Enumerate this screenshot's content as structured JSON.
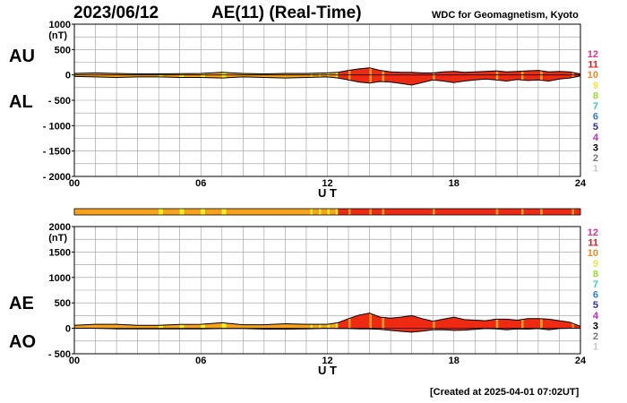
{
  "header": {
    "date": "2023/06/12",
    "title": "AE(11) (Real-Time)",
    "source": "WDC for Geomagnetism, Kyoto"
  },
  "footer": {
    "created": "[Created at 2025-04-01 07:02UT]"
  },
  "legend": {
    "levels": [
      {
        "label": "12",
        "color": "#e0338f"
      },
      {
        "label": "11",
        "color": "#e81b1b"
      },
      {
        "label": "10",
        "color": "#f08a1c"
      },
      {
        "label": "9",
        "color": "#f6e33a"
      },
      {
        "label": "8",
        "color": "#9bdc27"
      },
      {
        "label": "7",
        "color": "#33c9cc"
      },
      {
        "label": "6",
        "color": "#2f7be0"
      },
      {
        "label": "5",
        "color": "#2e2ab8"
      },
      {
        "label": "4",
        "color": "#c51fd1"
      },
      {
        "label": "3",
        "color": "#000000"
      },
      {
        "label": "2",
        "color": "#777777"
      },
      {
        "label": "1",
        "color": "#c8c8c8"
      }
    ]
  },
  "colors": {
    "orange": "#f7a21b",
    "red": "#ee2a12",
    "yellow": "#f4f21f",
    "grid": "#9a9a9a"
  },
  "chart_data": [
    {
      "type": "area",
      "panel": "top",
      "left_labels": [
        "AU",
        "AL"
      ],
      "ylabel": "(nT)",
      "ylim": [
        -2000,
        1000
      ],
      "y_ticks": [
        "1000",
        "500",
        "0",
        "- 500",
        "- 1000",
        "- 1500",
        "- 2000"
      ],
      "y_tick_values": [
        1000,
        500,
        0,
        -500,
        -1000,
        -1500,
        -2000
      ],
      "x_ticks": [
        "00",
        "06",
        "12",
        "18",
        "24"
      ],
      "x_tick_values": [
        0,
        6,
        12,
        18,
        24
      ],
      "xlabel": "U T",
      "xlim": [
        0,
        24
      ],
      "series": [
        {
          "x": [
            0,
            1,
            2,
            3,
            4,
            5,
            6,
            7,
            8,
            9,
            10,
            11,
            12,
            12.5,
            13,
            13.5,
            14,
            14.5,
            15,
            15.5,
            16,
            16.5,
            17,
            17.5,
            18,
            18.5,
            19,
            19.5,
            20,
            20.5,
            21,
            21.5,
            22,
            22.5,
            23,
            23.5,
            24
          ],
          "y": [
            30,
            40,
            30,
            20,
            20,
            25,
            30,
            50,
            30,
            20,
            30,
            30,
            40,
            50,
            90,
            120,
            140,
            90,
            60,
            50,
            50,
            40,
            40,
            60,
            70,
            50,
            60,
            70,
            80,
            60,
            70,
            80,
            90,
            60,
            70,
            60,
            20
          ]
        },
        {
          "x": [
            0,
            1,
            2,
            3,
            4,
            5,
            6,
            7,
            8,
            9,
            10,
            11,
            12,
            12.5,
            13,
            13.5,
            14,
            14.5,
            15,
            15.5,
            16,
            16.5,
            17,
            17.5,
            18,
            18.5,
            19,
            19.5,
            20,
            20.5,
            21,
            21.5,
            22,
            22.5,
            23,
            23.5,
            24
          ],
          "y": [
            -30,
            -40,
            -50,
            -40,
            -40,
            -50,
            -50,
            -60,
            -40,
            -50,
            -60,
            -50,
            -40,
            -60,
            -100,
            -140,
            -160,
            -130,
            -140,
            -170,
            -200,
            -150,
            -100,
            -120,
            -150,
            -120,
            -100,
            -80,
            -100,
            -120,
            -90,
            -110,
            -100,
            -120,
            -80,
            -60,
            -20
          ]
        }
      ]
    },
    {
      "type": "heatmap",
      "panel": "activity-bar",
      "xlim": [
        0,
        24
      ],
      "segments": [
        {
          "from": 0,
          "to": 4.0,
          "level": "orange"
        },
        {
          "from": 4.0,
          "to": 4.2,
          "level": "yellow"
        },
        {
          "from": 4.2,
          "to": 5.0,
          "level": "orange"
        },
        {
          "from": 5.0,
          "to": 5.2,
          "level": "yellow"
        },
        {
          "from": 5.2,
          "to": 6.0,
          "level": "orange"
        },
        {
          "from": 6.0,
          "to": 6.2,
          "level": "yellow"
        },
        {
          "from": 6.2,
          "to": 7.0,
          "level": "orange"
        },
        {
          "from": 7.0,
          "to": 7.2,
          "level": "yellow"
        },
        {
          "from": 7.2,
          "to": 11.2,
          "level": "orange"
        },
        {
          "from": 11.2,
          "to": 11.3,
          "level": "yellow"
        },
        {
          "from": 11.3,
          "to": 11.6,
          "level": "orange"
        },
        {
          "from": 11.6,
          "to": 11.7,
          "level": "yellow"
        },
        {
          "from": 11.7,
          "to": 12.0,
          "level": "orange"
        },
        {
          "from": 12.0,
          "to": 12.1,
          "level": "yellow"
        },
        {
          "from": 12.1,
          "to": 12.4,
          "level": "orange"
        },
        {
          "from": 12.4,
          "to": 12.5,
          "level": "yellow"
        },
        {
          "from": 12.5,
          "to": 13.0,
          "level": "red"
        },
        {
          "from": 13.0,
          "to": 13.1,
          "level": "orange"
        },
        {
          "from": 13.1,
          "to": 14.0,
          "level": "red"
        },
        {
          "from": 14.0,
          "to": 14.1,
          "level": "orange"
        },
        {
          "from": 14.1,
          "to": 14.6,
          "level": "red"
        },
        {
          "from": 14.6,
          "to": 14.7,
          "level": "orange"
        },
        {
          "from": 14.7,
          "to": 17.0,
          "level": "red"
        },
        {
          "from": 17.0,
          "to": 17.1,
          "level": "orange"
        },
        {
          "from": 17.1,
          "to": 20.0,
          "level": "red"
        },
        {
          "from": 20.0,
          "to": 20.1,
          "level": "orange"
        },
        {
          "from": 20.1,
          "to": 21.2,
          "level": "red"
        },
        {
          "from": 21.2,
          "to": 21.3,
          "level": "orange"
        },
        {
          "from": 21.3,
          "to": 22.1,
          "level": "red"
        },
        {
          "from": 22.1,
          "to": 22.2,
          "level": "orange"
        },
        {
          "from": 22.2,
          "to": 23.6,
          "level": "red"
        },
        {
          "from": 23.6,
          "to": 23.7,
          "level": "orange"
        },
        {
          "from": 23.7,
          "to": 24.0,
          "level": "red"
        }
      ]
    },
    {
      "type": "area",
      "panel": "bottom",
      "left_labels": [
        "AE",
        "AO"
      ],
      "ylabel": "(nT)",
      "ylim": [
        -500,
        2000
      ],
      "y_ticks": [
        "2000",
        "1500",
        "1000",
        "500",
        "0",
        "- 500"
      ],
      "y_tick_values": [
        2000,
        1500,
        1000,
        500,
        0,
        -500
      ],
      "x_ticks": [
        "00",
        "06",
        "12",
        "18",
        "24"
      ],
      "x_tick_values": [
        0,
        6,
        12,
        18,
        24
      ],
      "xlabel": "U T",
      "xlim": [
        0,
        24
      ],
      "series": [
        {
          "x": [
            0,
            1,
            2,
            3,
            4,
            5,
            6,
            7,
            8,
            9,
            10,
            11,
            12,
            12.5,
            13,
            13.5,
            14,
            14.5,
            15,
            15.5,
            16,
            16.5,
            17,
            17.5,
            18,
            18.5,
            19,
            19.5,
            20,
            20.5,
            21,
            21.5,
            22,
            22.5,
            23,
            23.5,
            24
          ],
          "y": [
            60,
            80,
            80,
            60,
            60,
            75,
            80,
            110,
            70,
            70,
            90,
            80,
            80,
            110,
            190,
            260,
            300,
            220,
            200,
            220,
            250,
            190,
            140,
            180,
            220,
            170,
            160,
            150,
            180,
            180,
            160,
            190,
            190,
            180,
            150,
            120,
            40
          ]
        },
        {
          "x": [
            0,
            1,
            2,
            3,
            4,
            5,
            6,
            7,
            8,
            9,
            10,
            11,
            12,
            12.5,
            13,
            13.5,
            14,
            14.5,
            15,
            15.5,
            16,
            16.5,
            17,
            17.5,
            18,
            18.5,
            19,
            19.5,
            20,
            20.5,
            21,
            21.5,
            22,
            22.5,
            23,
            23.5,
            24
          ],
          "y": [
            0,
            0,
            -10,
            -10,
            -10,
            -12,
            -10,
            -5,
            -5,
            -15,
            -15,
            -10,
            0,
            -5,
            -5,
            -10,
            -10,
            -20,
            -40,
            -60,
            -75,
            -55,
            -30,
            -30,
            -40,
            -35,
            -20,
            -5,
            -10,
            -30,
            -10,
            -15,
            -5,
            -30,
            -5,
            0,
            0
          ]
        }
      ]
    }
  ]
}
